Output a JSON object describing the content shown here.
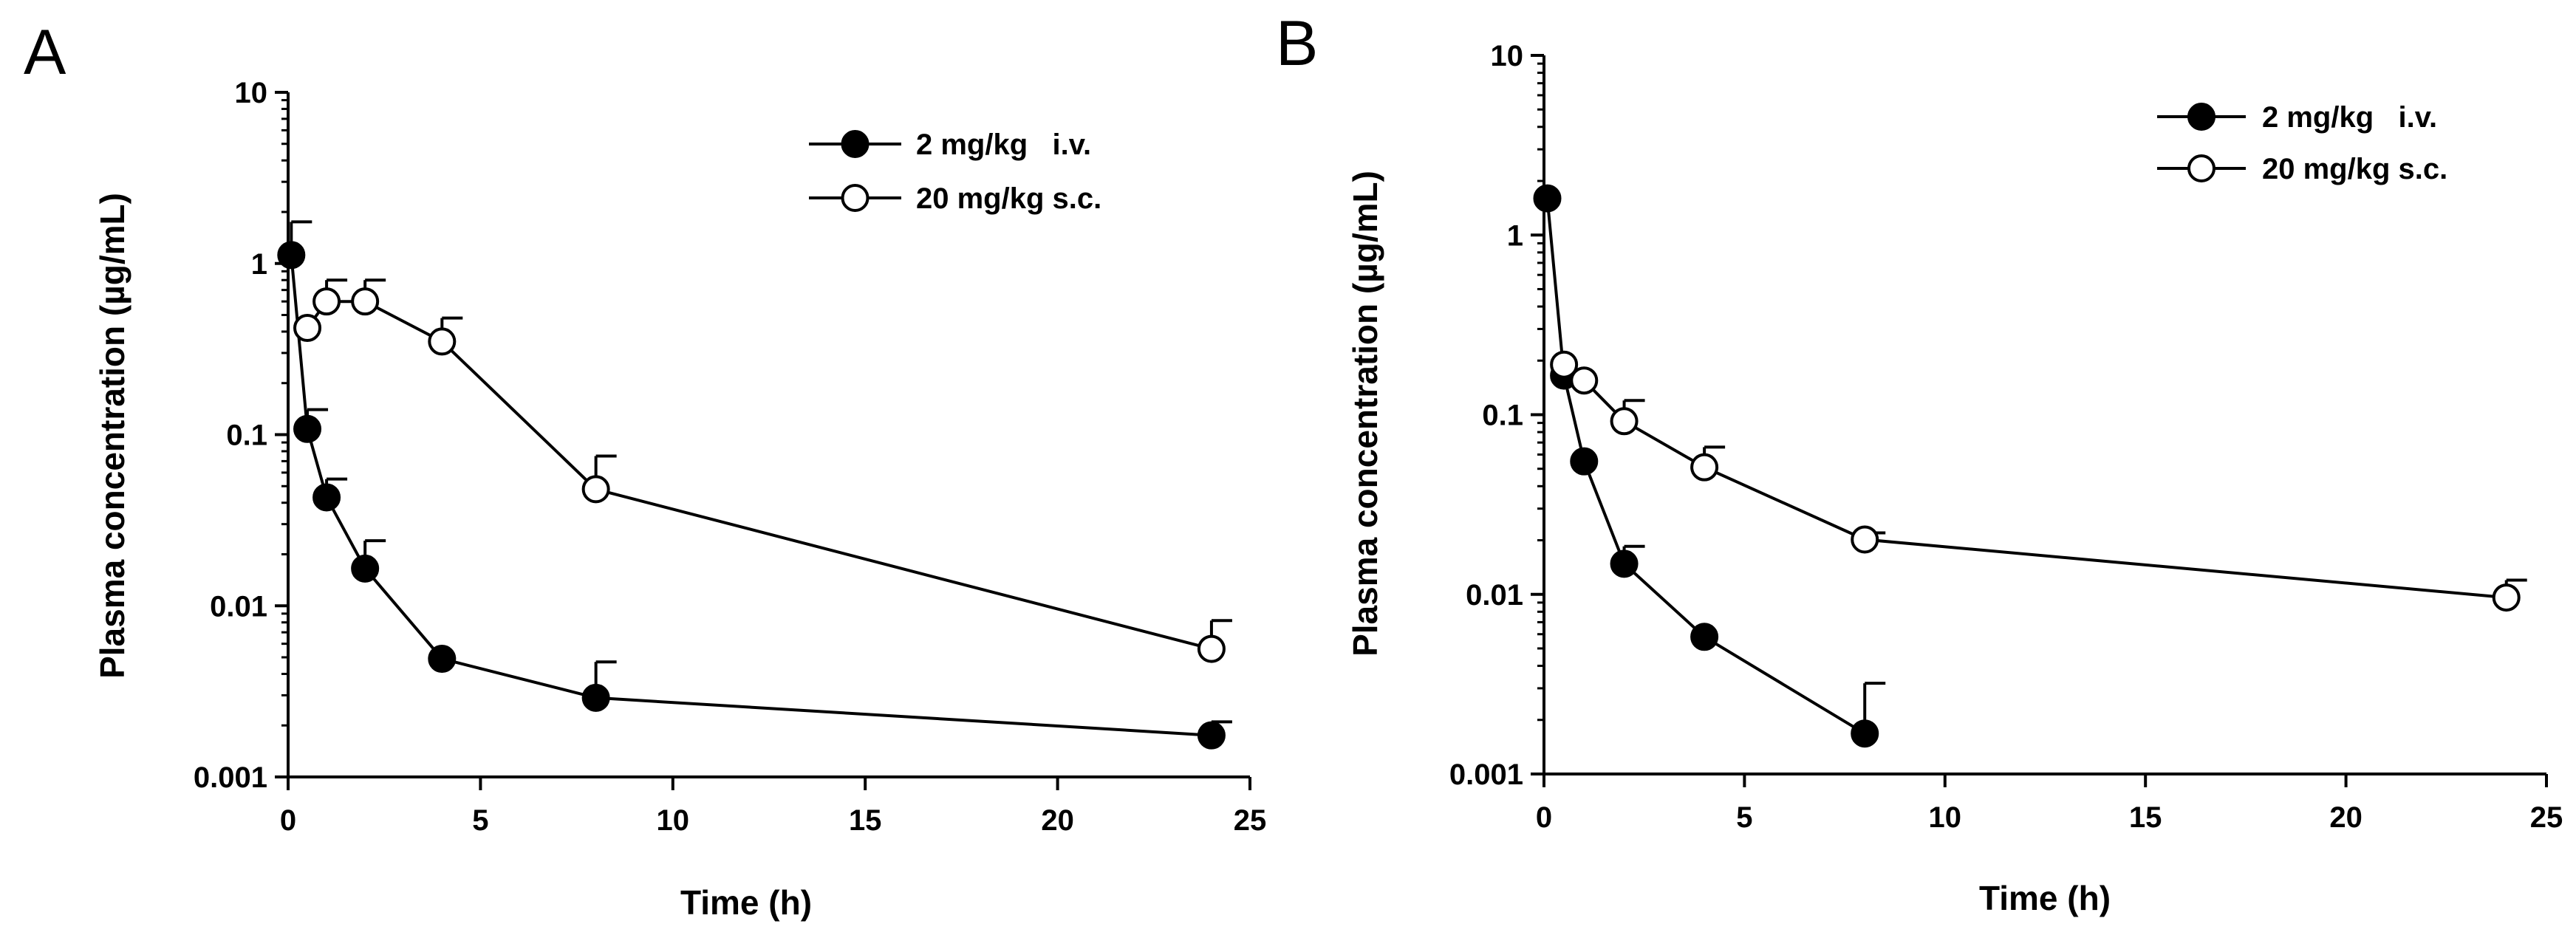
{
  "chart_data": [
    {
      "panel": "A",
      "type": "line",
      "y_scale": "log",
      "xlabel": "Time (h)",
      "ylabel": "Plasma concentration (µg/mL)",
      "xlim": [
        0,
        25
      ],
      "ylim": [
        0.001,
        10
      ],
      "x_ticks": [
        0,
        5,
        10,
        15,
        20,
        25
      ],
      "x_tick_labels": [
        "0",
        "5",
        "10",
        "15",
        "20",
        "25"
      ],
      "y_ticks": [
        0.001,
        0.01,
        0.1,
        1,
        10
      ],
      "y_tick_labels": [
        "0.001",
        "0.01",
        "0.1",
        "1",
        "10"
      ],
      "legend_position": "top-right",
      "series": [
        {
          "name": "2 mg/kg i.v.",
          "legend_label": "2 mg/kg   i.v.",
          "marker": "filled-circle",
          "x": [
            0.083,
            0.5,
            1,
            2,
            4,
            8,
            24
          ],
          "y": [
            1.12,
            0.108,
            0.043,
            0.0165,
            0.0049,
            0.0029,
            0.00175
          ],
          "err_upper": [
            1.75,
            0.14,
            0.055,
            0.024,
            null,
            0.0047,
            0.0021
          ]
        },
        {
          "name": "20 mg/kg s.c.",
          "legend_label": "20 mg/kg s.c.",
          "marker": "open-circle",
          "x": [
            0.5,
            1,
            2,
            4,
            8,
            24
          ],
          "y": [
            0.42,
            0.6,
            0.6,
            0.35,
            0.048,
            0.0056
          ],
          "err_upper": [
            null,
            0.8,
            0.8,
            0.48,
            0.075,
            0.0082
          ]
        }
      ]
    },
    {
      "panel": "B",
      "type": "line",
      "y_scale": "log",
      "xlabel": "Time (h)",
      "ylabel": "Plasma concentration (µg/mL)",
      "xlim": [
        0,
        25
      ],
      "ylim": [
        0.001,
        10
      ],
      "x_ticks": [
        0,
        5,
        10,
        15,
        20,
        25
      ],
      "x_tick_labels": [
        "0",
        "5",
        "10",
        "15",
        "20",
        "25"
      ],
      "y_ticks": [
        0.001,
        0.01,
        0.1,
        1,
        10
      ],
      "y_tick_labels": [
        "0.001",
        "0.01",
        "0.1",
        "1",
        "10"
      ],
      "legend_position": "top-right",
      "series": [
        {
          "name": "2 mg/kg i.v.",
          "legend_label": "2 mg/kg   i.v.",
          "marker": "filled-circle",
          "x": [
            0.083,
            0.5,
            1,
            2,
            4,
            8
          ],
          "y": [
            1.6,
            0.165,
            0.055,
            0.0148,
            0.0058,
            0.00168
          ],
          "err_upper": [
            null,
            null,
            null,
            0.0185,
            null,
            0.0032
          ]
        },
        {
          "name": "20 mg/kg s.c.",
          "legend_label": "20 mg/kg s.c.",
          "marker": "open-circle",
          "x": [
            0.5,
            1,
            2,
            4,
            8,
            24
          ],
          "y": [
            0.19,
            0.155,
            0.092,
            0.051,
            0.0202,
            0.0096
          ],
          "err_upper": [
            null,
            null,
            0.12,
            0.066,
            0.022,
            0.012
          ]
        }
      ]
    }
  ]
}
